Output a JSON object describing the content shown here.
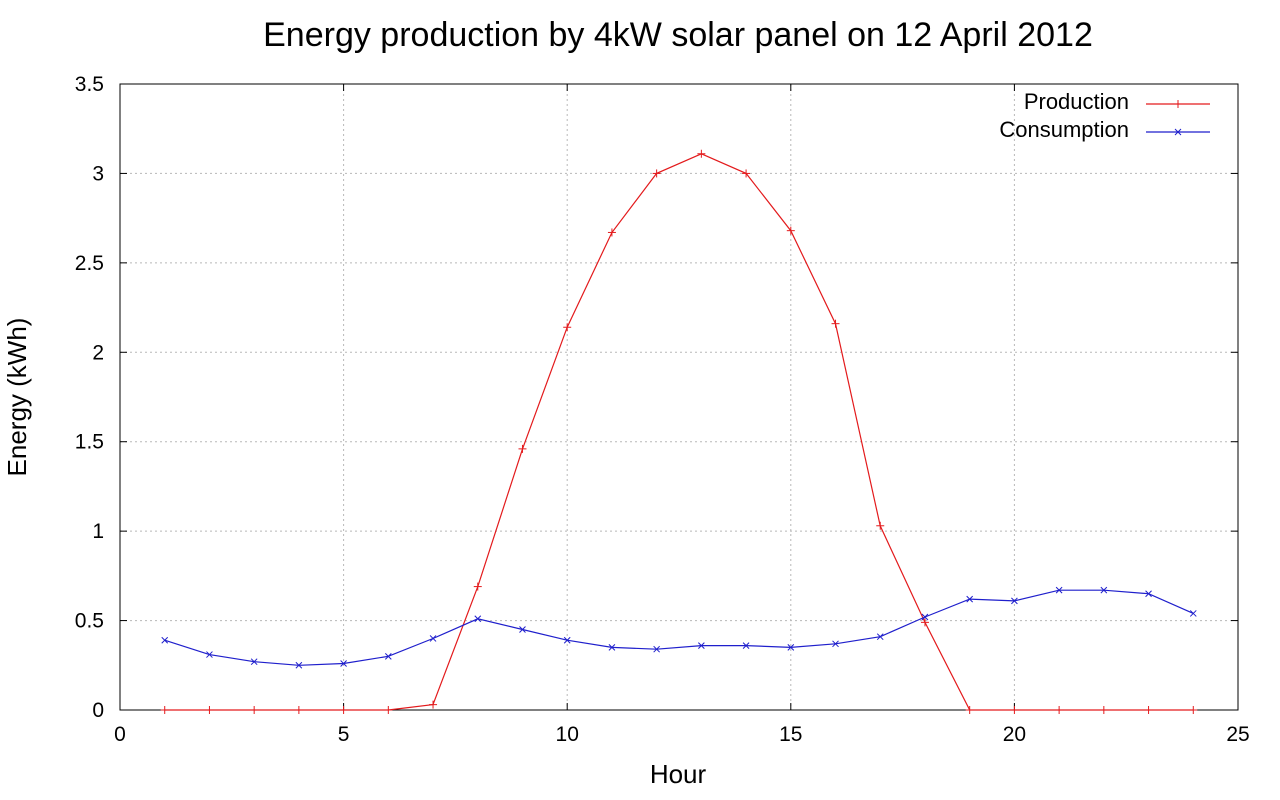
{
  "chart_data": {
    "type": "line",
    "title": "Energy production by 4kW solar panel on 12 April 2012",
    "xlabel": "Hour",
    "ylabel": "Energy (kWh)",
    "xlim": [
      0,
      25
    ],
    "ylim": [
      0,
      3.5
    ],
    "x_ticks": [
      0,
      5,
      10,
      15,
      20,
      25
    ],
    "y_ticks": [
      0,
      0.5,
      1,
      1.5,
      2,
      2.5,
      3,
      3.5
    ],
    "x_tick_labels": [
      "0",
      "5",
      "10",
      "15",
      "20",
      "25"
    ],
    "y_tick_labels": [
      "0",
      "0.5",
      "1",
      "1.5",
      "2",
      "2.5",
      "3",
      "3.5"
    ],
    "grid": true,
    "legend_position": "top-right",
    "x": [
      1,
      2,
      3,
      4,
      5,
      6,
      7,
      8,
      9,
      10,
      11,
      12,
      13,
      14,
      15,
      16,
      17,
      18,
      19,
      20,
      21,
      22,
      23,
      24
    ],
    "series": [
      {
        "name": "Production",
        "color": "#e31a1c",
        "marker": "plus",
        "values": [
          0,
          0,
          0,
          0,
          0,
          0,
          0.03,
          0.69,
          1.46,
          2.14,
          2.67,
          3.0,
          3.11,
          3.0,
          2.68,
          2.16,
          1.03,
          0.49,
          0,
          0,
          0,
          0,
          0,
          0
        ]
      },
      {
        "name": "Consumption",
        "color": "#1f1fcc",
        "marker": "cross",
        "values": [
          0.39,
          0.31,
          0.27,
          0.25,
          0.26,
          0.3,
          0.4,
          0.51,
          0.45,
          0.39,
          0.35,
          0.34,
          0.36,
          0.36,
          0.35,
          0.37,
          0.41,
          0.52,
          0.62,
          0.61,
          0.67,
          0.67,
          0.65,
          0.54
        ]
      }
    ]
  }
}
